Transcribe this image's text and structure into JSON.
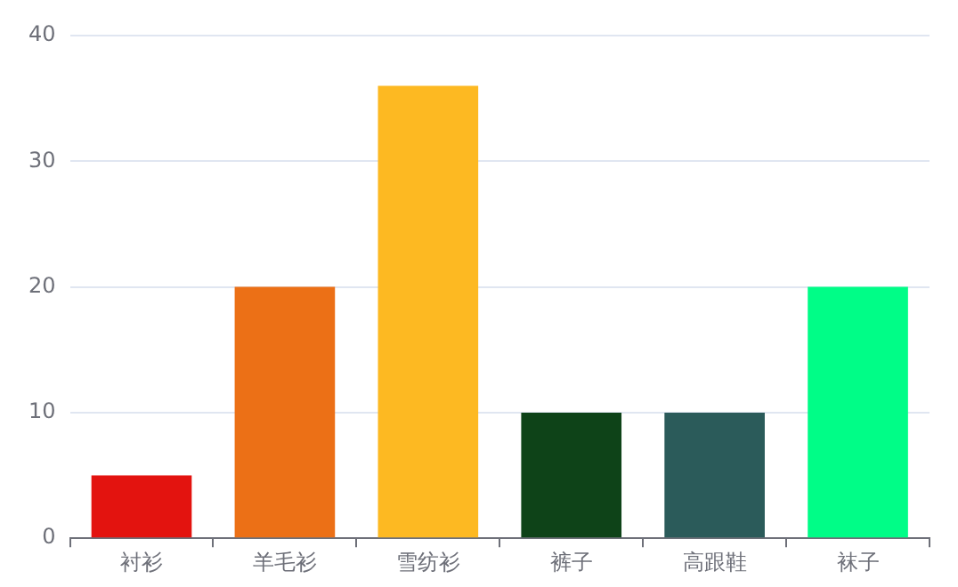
{
  "chart_data": {
    "type": "bar",
    "categories": [
      "衬衫",
      "羊毛衫",
      "雪纺衫",
      "裤子",
      "高跟鞋",
      "袜子"
    ],
    "values": [
      5,
      20,
      36,
      10,
      10,
      20
    ],
    "colors": [
      "#e3130f",
      "#ec7016",
      "#fdb922",
      "#0e4318",
      "#2b5b5a",
      "#00fd87"
    ],
    "ylim": [
      0,
      40
    ],
    "yticks": [
      0,
      10,
      20,
      30,
      40
    ],
    "grid": "y",
    "legend": false
  }
}
